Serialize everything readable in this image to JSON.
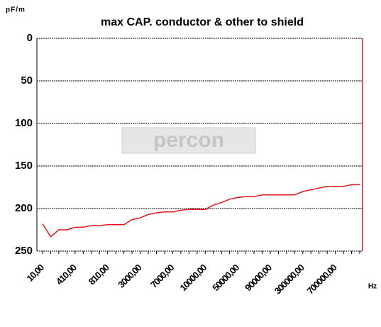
{
  "chart_data": {
    "type": "line",
    "title": "max CAP.  conductor & other  to shield",
    "y_label": "pF/m",
    "x_label": "Hz",
    "watermark": "percon",
    "categories": [
      "10,00",
      null,
      null,
      null,
      "410,00",
      null,
      null,
      null,
      "810,00",
      null,
      null,
      null,
      "3000,00",
      null,
      null,
      null,
      "7000,00",
      null,
      null,
      null,
      "10000,00",
      null,
      null,
      null,
      "50000,00",
      null,
      null,
      null,
      "90000,00",
      null,
      null,
      null,
      "300000,00",
      null,
      null,
      null,
      "700000,00",
      null,
      null,
      null
    ],
    "series": [
      {
        "name": "max CAP.",
        "color": "#e8141c",
        "values": [
          218,
          233,
          225,
          225,
          222,
          222,
          220,
          220,
          219,
          219,
          219,
          213,
          211,
          207,
          205,
          204,
          204,
          202,
          201,
          201,
          201,
          196,
          193,
          189,
          187,
          186,
          186,
          184,
          184,
          184,
          184,
          184,
          180,
          178,
          176,
          174,
          174,
          174,
          172,
          172
        ]
      }
    ],
    "ylim": [
      0,
      250
    ],
    "yticks": [
      0,
      50,
      100,
      150,
      200,
      250
    ],
    "y_inverted": true,
    "grid": true
  }
}
